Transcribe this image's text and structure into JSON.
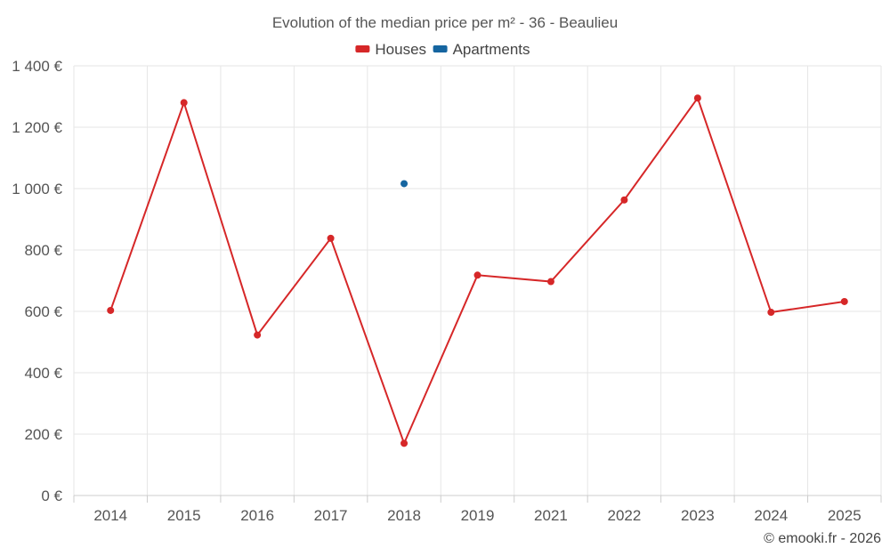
{
  "chart_data": {
    "type": "line",
    "title": "Evolution of the median price per m² - 36 - Beaulieu",
    "categories": [
      "2014",
      "2015",
      "2016",
      "2017",
      "2018",
      "2019",
      "2021",
      "2022",
      "2023",
      "2024",
      "2025"
    ],
    "y_ticks": [
      "0 €",
      "200 €",
      "400 €",
      "600 €",
      "800 €",
      "1 000 €",
      "1 200 €",
      "1 400 €"
    ],
    "y_tick_values": [
      0,
      200,
      400,
      600,
      800,
      1000,
      1200,
      1400
    ],
    "ylim": [
      0,
      1400
    ],
    "xlabel": "",
    "ylabel": "",
    "grid": true,
    "legend_position": "top-center",
    "series": [
      {
        "name": "Houses",
        "color": "#d62728",
        "values": [
          603,
          1280,
          523,
          838,
          170,
          718,
          697,
          963,
          1295,
          597,
          632
        ]
      },
      {
        "name": "Apartments",
        "color": "#1565a0",
        "values": [
          null,
          null,
          null,
          null,
          1016,
          null,
          null,
          null,
          null,
          null,
          null
        ]
      }
    ]
  },
  "credit": "© emooki.fr - 2026"
}
